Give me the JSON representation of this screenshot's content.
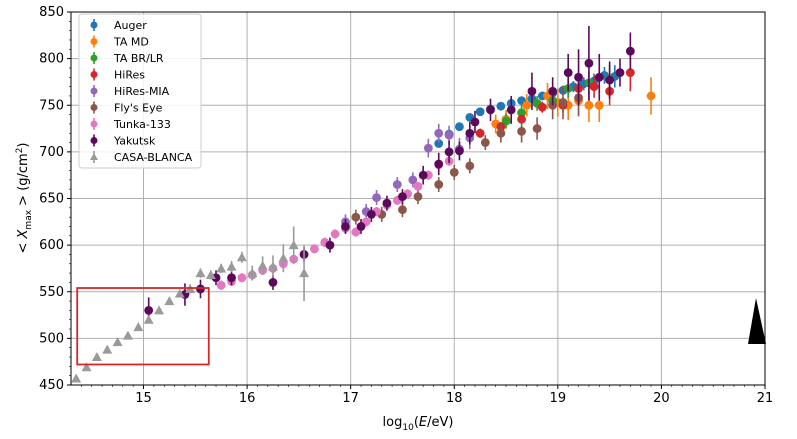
{
  "chart_data": {
    "type": "scatter",
    "xlabel": "log10(E/eV)",
    "ylabel": "< Xmax >  (g/cm2)",
    "xlim": [
      14.3,
      21
    ],
    "ylim": [
      450,
      850
    ],
    "xticks": [
      15,
      16,
      17,
      18,
      19,
      20,
      21
    ],
    "yticks": [
      450,
      500,
      550,
      600,
      650,
      700,
      750,
      800,
      850
    ],
    "grid": true,
    "legend_position": "top-left",
    "highlight_box": {
      "x_range": [
        14.36,
        15.63
      ],
      "y_range": [
        472,
        554
      ],
      "color": "#d62728"
    },
    "series": [
      {
        "name": "Auger",
        "color": "#1f77b4",
        "marker": "circle",
        "x": [
          17.85,
          17.95,
          18.05,
          18.15,
          18.25,
          18.35,
          18.45,
          18.55,
          18.65,
          18.75,
          18.85,
          18.95,
          19.05,
          19.15,
          19.25,
          19.35,
          19.45,
          19.55
        ],
        "y": [
          709,
          719,
          727,
          737,
          743,
          746,
          749,
          752,
          755,
          757,
          760,
          763,
          766,
          770,
          773,
          776,
          782,
          781
        ],
        "err": [
          3,
          3,
          3,
          3,
          3,
          3,
          3,
          3,
          3,
          4,
          4,
          4,
          5,
          6,
          7,
          8,
          9,
          12
        ]
      },
      {
        "name": "TA MD",
        "color": "#ff7f0e",
        "marker": "circle",
        "x": [
          18.4,
          18.5,
          18.7,
          18.9,
          19.0,
          19.1,
          19.2,
          19.3,
          19.4,
          19.9
        ],
        "y": [
          730,
          735,
          750,
          760,
          753,
          750,
          755,
          750,
          750,
          760
        ],
        "err": [
          10,
          10,
          12,
          14,
          15,
          16,
          16,
          18,
          18,
          20
        ]
      },
      {
        "name": "TA BR/LR",
        "color": "#2ca02c",
        "marker": "circle",
        "x": [
          18.5,
          18.65,
          18.8,
          18.95,
          19.1,
          19.3,
          19.5
        ],
        "y": [
          733,
          742,
          752,
          755,
          768,
          774,
          778
        ],
        "err": [
          8,
          8,
          8,
          10,
          10,
          12,
          15
        ]
      },
      {
        "name": "HiRes",
        "color": "#d62728",
        "marker": "circle",
        "x": [
          18.25,
          18.45,
          18.65,
          18.85,
          19.05,
          19.2,
          19.35,
          19.5,
          19.7
        ],
        "y": [
          720,
          727,
          735,
          748,
          750,
          768,
          770,
          765,
          785
        ],
        "err": [
          5,
          5,
          5,
          6,
          8,
          10,
          12,
          15,
          20
        ]
      },
      {
        "name": "HiRes-MIA",
        "color": "#9467bd",
        "marker": "circle",
        "x": [
          16.95,
          17.15,
          17.25,
          17.45,
          17.6,
          17.75,
          17.85,
          17.95,
          18.05,
          18.15
        ],
        "y": [
          625,
          636,
          651,
          665,
          670,
          704,
          720,
          718,
          703,
          715
        ],
        "err": [
          8,
          8,
          8,
          8,
          8,
          10,
          10,
          10,
          12,
          12
        ]
      },
      {
        "name": "Fly's Eye",
        "color": "#8c564b",
        "marker": "circle",
        "x": [
          17.05,
          17.3,
          17.5,
          17.65,
          17.85,
          18.0,
          18.15,
          18.3,
          18.45,
          18.65,
          18.8,
          18.95,
          19.05,
          19.2
        ],
        "y": [
          630,
          633,
          638,
          652,
          665,
          678,
          685,
          710,
          720,
          722,
          725,
          750,
          753,
          758
        ],
        "err": [
          8,
          8,
          8,
          8,
          8,
          8,
          8,
          8,
          10,
          12,
          12,
          15,
          18,
          20
        ]
      },
      {
        "name": "Tunka-133",
        "color": "#e377c2",
        "marker": "circle",
        "x": [
          15.75,
          15.85,
          15.95,
          16.05,
          16.15,
          16.25,
          16.35,
          16.45,
          16.55,
          16.65,
          16.75,
          16.85,
          16.95,
          17.05,
          17.15,
          17.25,
          17.35,
          17.45,
          17.55,
          17.65,
          17.75,
          17.85,
          17.95
        ],
        "y": [
          557,
          561,
          565,
          568,
          573,
          575,
          580,
          585,
          590,
          596,
          603,
          612,
          618,
          614,
          625,
          636,
          643,
          648,
          655,
          663,
          675,
          686,
          690
        ],
        "err": [
          5,
          5,
          5,
          5,
          5,
          5,
          5,
          5,
          5,
          5,
          5,
          5,
          5,
          5,
          5,
          5,
          5,
          5,
          5,
          5,
          5,
          5,
          5
        ]
      },
      {
        "name": "Yakutsk",
        "color": "#5b0a5b",
        "marker": "circle",
        "x": [
          15.05,
          15.4,
          15.55,
          15.7,
          15.85,
          16.25,
          16.55,
          16.8,
          16.95,
          17.1,
          17.2,
          17.35,
          17.5,
          17.7,
          17.85,
          17.95,
          18.05,
          18.15,
          18.2,
          18.35,
          18.55,
          18.75,
          18.95,
          19.1,
          19.2,
          19.3,
          19.4,
          19.5,
          19.6,
          19.7
        ],
        "y": [
          530,
          547,
          553,
          565,
          565,
          560,
          590,
          600,
          620,
          620,
          633,
          645,
          652,
          675,
          687,
          700,
          701,
          720,
          732,
          745,
          745,
          765,
          765,
          785,
          780,
          795,
          780,
          777,
          785,
          808
        ],
        "err": [
          14,
          12,
          10,
          8,
          8,
          8,
          8,
          8,
          8,
          8,
          8,
          8,
          8,
          10,
          12,
          12,
          10,
          12,
          12,
          12,
          15,
          20,
          15,
          20,
          30,
          40,
          25,
          20,
          15,
          20
        ]
      },
      {
        "name": "CASA-BLANCA",
        "color": "#9a9a9a",
        "marker": "triangle",
        "x": [
          14.35,
          14.45,
          14.55,
          14.65,
          14.75,
          14.85,
          14.95,
          15.05,
          15.15,
          15.25,
          15.35,
          15.45,
          15.55,
          15.65,
          15.75,
          15.85,
          15.95,
          16.05,
          16.15,
          16.25,
          16.35,
          16.45,
          16.55
        ],
        "y": [
          457,
          469,
          480,
          488,
          496,
          503,
          512,
          520,
          530,
          540,
          548,
          553,
          570,
          568,
          575,
          577,
          587,
          570,
          578,
          577,
          586,
          600,
          570
        ],
        "err": [
          3,
          3,
          3,
          3,
          3,
          3,
          3,
          4,
          4,
          4,
          4,
          5,
          5,
          5,
          5,
          6,
          6,
          8,
          10,
          12,
          15,
          20,
          30
        ]
      }
    ]
  }
}
